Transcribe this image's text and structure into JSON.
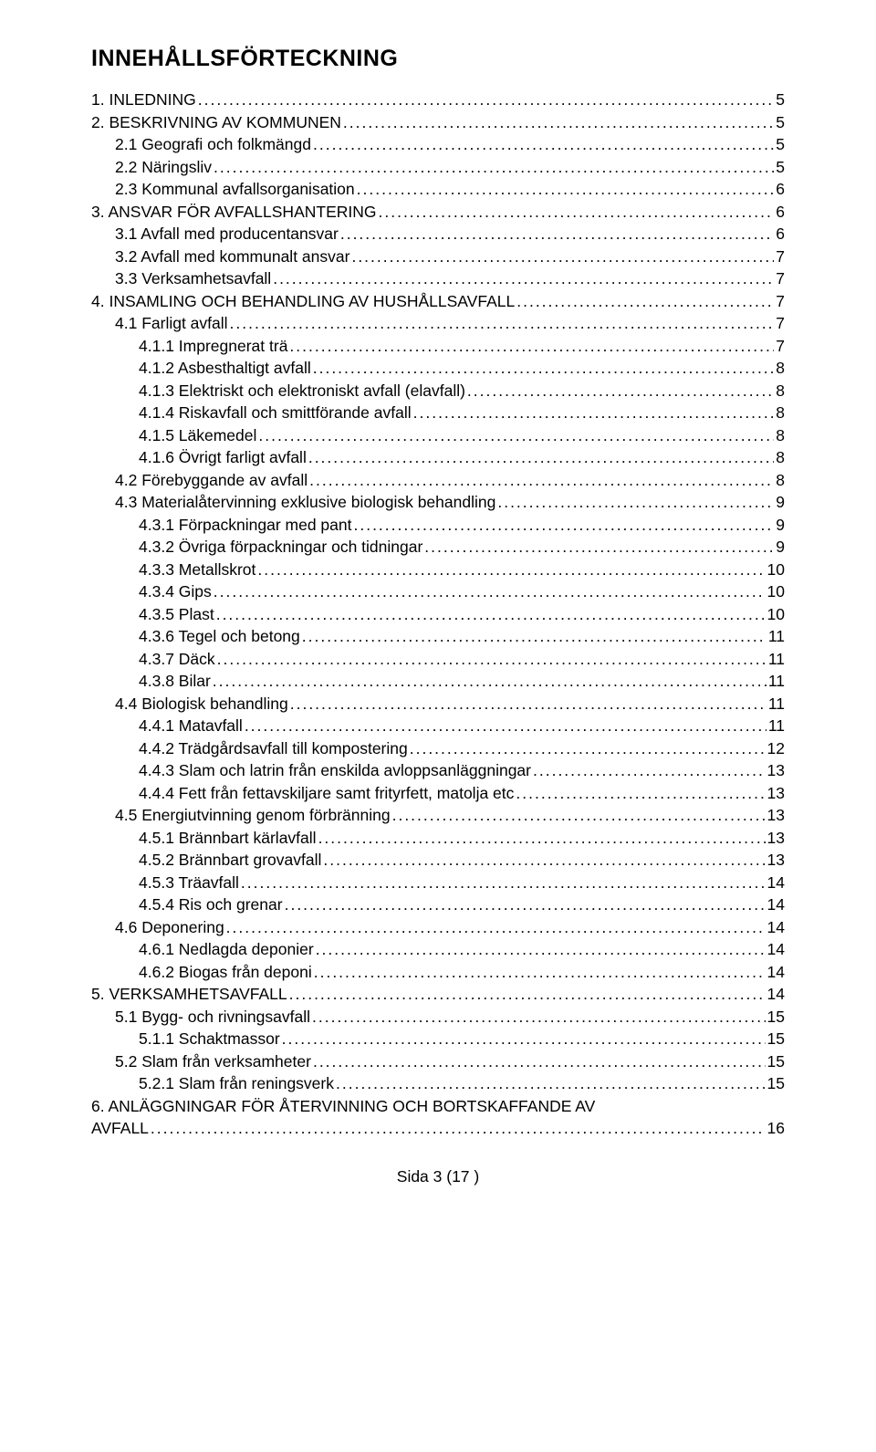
{
  "title": "INNEHÅLLSFÖRTECKNING",
  "footer": "Sida 3 (17 )",
  "last_line1": "6.   ANLÄGGNINGAR FÖR ÅTERVINNING OCH BORTSKAFFANDE AV",
  "last_line2_label": "AVFALL",
  "last_line2_page": "16",
  "fontsize_title": 25,
  "fontsize_body": 17.5,
  "text_color": "#000000",
  "background_color": "#ffffff",
  "entries": [
    {
      "indent": 0,
      "label": "1.   INLEDNING",
      "page": "5"
    },
    {
      "indent": 0,
      "label": "2.   BESKRIVNING AV KOMMUNEN",
      "page": "5"
    },
    {
      "indent": 1,
      "label": "2.1   Geografi och folkmängd",
      "page": "5"
    },
    {
      "indent": 1,
      "label": "2.2   Näringsliv",
      "page": "5"
    },
    {
      "indent": 1,
      "label": "2.3   Kommunal avfallsorganisation",
      "page": "6"
    },
    {
      "indent": 0,
      "label": "3.   ANSVAR FÖR AVFALLSHANTERING",
      "page": "6"
    },
    {
      "indent": 1,
      "label": "3.1   Avfall med producentansvar",
      "page": "6"
    },
    {
      "indent": 1,
      "label": "3.2   Avfall med kommunalt ansvar",
      "page": "7"
    },
    {
      "indent": 1,
      "label": "3.3   Verksamhetsavfall",
      "page": "7"
    },
    {
      "indent": 0,
      "label": "4.   INSAMLING OCH BEHANDLING AV HUSHÅLLSAVFALL",
      "page": "7"
    },
    {
      "indent": 1,
      "label": "4.1   Farligt avfall",
      "page": "7"
    },
    {
      "indent": 2,
      "label": "4.1.1   Impregnerat trä",
      "page": "7"
    },
    {
      "indent": 2,
      "label": "4.1.2   Asbesthaltigt avfall",
      "page": "8"
    },
    {
      "indent": 2,
      "label": "4.1.3   Elektriskt och elektroniskt avfall (elavfall)",
      "page": "8"
    },
    {
      "indent": 2,
      "label": "4.1.4   Riskavfall och smittförande avfall",
      "page": "8"
    },
    {
      "indent": 2,
      "label": "4.1.5   Läkemedel",
      "page": "8"
    },
    {
      "indent": 2,
      "label": "4.1.6   Övrigt farligt avfall",
      "page": "8"
    },
    {
      "indent": 1,
      "label": "4.2   Förebyggande av avfall",
      "page": "8"
    },
    {
      "indent": 1,
      "label": "4.3   Materialåtervinning exklusive biologisk behandling",
      "page": "9"
    },
    {
      "indent": 2,
      "label": "4.3.1   Förpackningar med pant",
      "page": "9"
    },
    {
      "indent": 2,
      "label": "4.3.2   Övriga förpackningar och tidningar",
      "page": "9"
    },
    {
      "indent": 2,
      "label": "4.3.3   Metallskrot",
      "page": "10"
    },
    {
      "indent": 2,
      "label": "4.3.4   Gips",
      "page": "10"
    },
    {
      "indent": 2,
      "label": "4.3.5   Plast",
      "page": "10"
    },
    {
      "indent": 2,
      "label": "4.3.6   Tegel och betong",
      "page": "11"
    },
    {
      "indent": 2,
      "label": "4.3.7   Däck",
      "page": "11"
    },
    {
      "indent": 2,
      "label": "4.3.8   Bilar",
      "page": "11"
    },
    {
      "indent": 1,
      "label": "4.4   Biologisk behandling",
      "page": "11"
    },
    {
      "indent": 2,
      "label": "4.4.1   Matavfall",
      "page": "11"
    },
    {
      "indent": 2,
      "label": "4.4.2   Trädgårdsavfall till kompostering",
      "page": "12"
    },
    {
      "indent": 2,
      "label": "4.4.3   Slam och latrin från enskilda avloppsanläggningar",
      "page": "13"
    },
    {
      "indent": 2,
      "label": "4.4.4   Fett från fettavskiljare samt frityrfett, matolja etc",
      "page": "13"
    },
    {
      "indent": 1,
      "label": "4.5   Energiutvinning genom förbränning",
      "page": "13"
    },
    {
      "indent": 2,
      "label": "4.5.1   Brännbart kärlavfall",
      "page": "13"
    },
    {
      "indent": 2,
      "label": "4.5.2   Brännbart grovavfall",
      "page": "13"
    },
    {
      "indent": 2,
      "label": "4.5.3   Träavfall",
      "page": "14"
    },
    {
      "indent": 2,
      "label": "4.5.4   Ris och grenar",
      "page": "14"
    },
    {
      "indent": 1,
      "label": "4.6   Deponering",
      "page": "14"
    },
    {
      "indent": 2,
      "label": "4.6.1   Nedlagda deponier",
      "page": "14"
    },
    {
      "indent": 2,
      "label": "4.6.2   Biogas från deponi",
      "page": "14"
    },
    {
      "indent": 0,
      "label": "5.   VERKSAMHETSAVFALL",
      "page": "14"
    },
    {
      "indent": 1,
      "label": "5.1   Bygg- och rivningsavfall",
      "page": "15"
    },
    {
      "indent": 2,
      "label": "5.1.1   Schaktmassor",
      "page": "15"
    },
    {
      "indent": 1,
      "label": "5.2   Slam från verksamheter",
      "page": "15"
    },
    {
      "indent": 2,
      "label": "5.2.1   Slam från reningsverk",
      "page": "15"
    }
  ]
}
